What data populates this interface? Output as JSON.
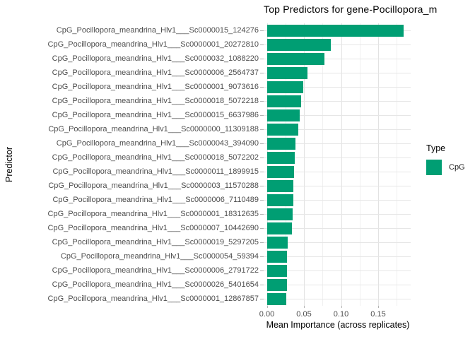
{
  "title": "Top Predictors for gene-Pocillopora_m",
  "axes": {
    "x_title": "Mean Importance (across replicates)",
    "y_title": "Predictor",
    "x_tick_labels": [
      "0.00",
      "0.05",
      "0.10",
      "0.15"
    ]
  },
  "legend": {
    "title": "Type",
    "items": [
      {
        "label": "CpG",
        "color": "#009E73"
      }
    ]
  },
  "chart_data": {
    "type": "bar",
    "orientation": "horizontal",
    "title": "Top Predictors for gene-Pocillopora_m",
    "xlabel": "Mean Importance (across replicates)",
    "ylabel": "Predictor",
    "series_name": "CpG",
    "bar_color": "#009E73",
    "grid": true,
    "legend_position": "right",
    "xlim": [
      -0.004,
      0.194
    ],
    "x_tick_values": [
      0,
      0.05,
      0.1,
      0.15
    ],
    "x_minor_tick_values": [
      0.025,
      0.075,
      0.125,
      0.175
    ],
    "categories": [
      "CpG_Pocillopora_meandrina_Hlv1___Sc0000015_124276",
      "CpG_Pocillopora_meandrina_Hlv1___Sc0000001_20272810",
      "CpG_Pocillopora_meandrina_Hlv1___Sc0000032_1088220",
      "CpG_Pocillopora_meandrina_Hlv1___Sc0000006_2564737",
      "CpG_Pocillopora_meandrina_Hlv1___Sc0000001_9073616",
      "CpG_Pocillopora_meandrina_Hlv1___Sc0000018_5072218",
      "CpG_Pocillopora_meandrina_Hlv1___Sc0000015_6637986",
      "CpG_Pocillopora_meandrina_Hlv1___Sc0000000_11309188",
      "CpG_Pocillopora_meandrina_Hlv1___Sc0000043_394090",
      "CpG_Pocillopora_meandrina_Hlv1___Sc0000018_5072202",
      "CpG_Pocillopora_meandrina_Hlv1___Sc0000011_1899915",
      "CpG_Pocillopora_meandrina_Hlv1___Sc0000003_11570288",
      "CpG_Pocillopora_meandrina_Hlv1___Sc0000006_7110489",
      "CpG_Pocillopora_meandrina_Hlv1___Sc0000001_18312635",
      "CpG_Pocillopora_meandrina_Hlv1___Sc0000007_10442690",
      "CpG_Pocillopora_meandrina_Hlv1___Sc0000019_5297205",
      "CpG_Pocillopora_meandrina_Hlv1___Sc0000054_59394",
      "CpG_Pocillopora_meandrina_Hlv1___Sc0000006_2791722",
      "CpG_Pocillopora_meandrina_Hlv1___Sc0000026_5401654",
      "CpG_Pocillopora_meandrina_Hlv1___Sc0000001_12867857"
    ],
    "values": [
      0.184,
      0.086,
      0.078,
      0.055,
      0.049,
      0.046,
      0.044,
      0.042,
      0.039,
      0.038,
      0.037,
      0.036,
      0.036,
      0.035,
      0.034,
      0.028,
      0.027,
      0.027,
      0.027,
      0.026
    ]
  }
}
